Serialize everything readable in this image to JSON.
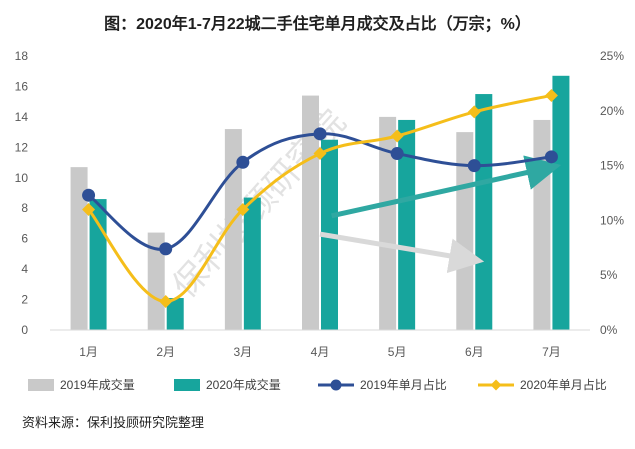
{
  "chart_data": {
    "type": "bar",
    "title": "图：2020年1-7月22城二手住宅单月成交及占比（万宗；%）",
    "categories": [
      "1月",
      "2月",
      "3月",
      "4月",
      "5月",
      "6月",
      "7月"
    ],
    "y_left": {
      "min": 0,
      "max": 18,
      "step": 2,
      "ticks": [
        "0",
        "2",
        "4",
        "6",
        "8",
        "10",
        "12",
        "14",
        "16",
        "18"
      ]
    },
    "y_right": {
      "min": 0,
      "max": 25,
      "step": 5,
      "ticks": [
        "0%",
        "5%",
        "10%",
        "15%",
        "20%",
        "25%"
      ]
    },
    "series": [
      {
        "name": "2019年成交量",
        "kind": "bar",
        "axis": "left",
        "color": "#c9c9c9",
        "values": [
          10.7,
          6.4,
          13.2,
          15.4,
          14.0,
          13.0,
          13.8
        ]
      },
      {
        "name": "2020年成交量",
        "kind": "bar",
        "axis": "left",
        "color": "#17a59d",
        "values": [
          8.6,
          2.1,
          8.7,
          12.5,
          13.8,
          15.5,
          16.7
        ]
      },
      {
        "name": "2019年单月占比",
        "kind": "line",
        "axis": "right",
        "color": "#2e4f96",
        "marker": "circle",
        "values": [
          12.3,
          7.4,
          15.3,
          17.9,
          16.1,
          15.0,
          15.8
        ]
      },
      {
        "name": "2020年单月占比",
        "kind": "line",
        "axis": "right",
        "color": "#f5be1a",
        "marker": "diamond",
        "values": [
          11.0,
          2.6,
          11.0,
          16.1,
          17.7,
          19.9,
          21.4
        ]
      }
    ],
    "grid": false,
    "legend_position": "bottom",
    "annotations": [
      {
        "type": "arrow",
        "color": "#2fa8a2",
        "from": [
          3.15,
          7.5
        ],
        "to": [
          6.0,
          10.7
        ]
      },
      {
        "type": "arrow",
        "color": "#d9d9d9",
        "from": [
          3.0,
          6.3
        ],
        "to": [
          5.0,
          4.6
        ]
      }
    ],
    "watermark": "保利投顾研究院"
  },
  "source_note": "资料来源：保利投顾研究院整理"
}
